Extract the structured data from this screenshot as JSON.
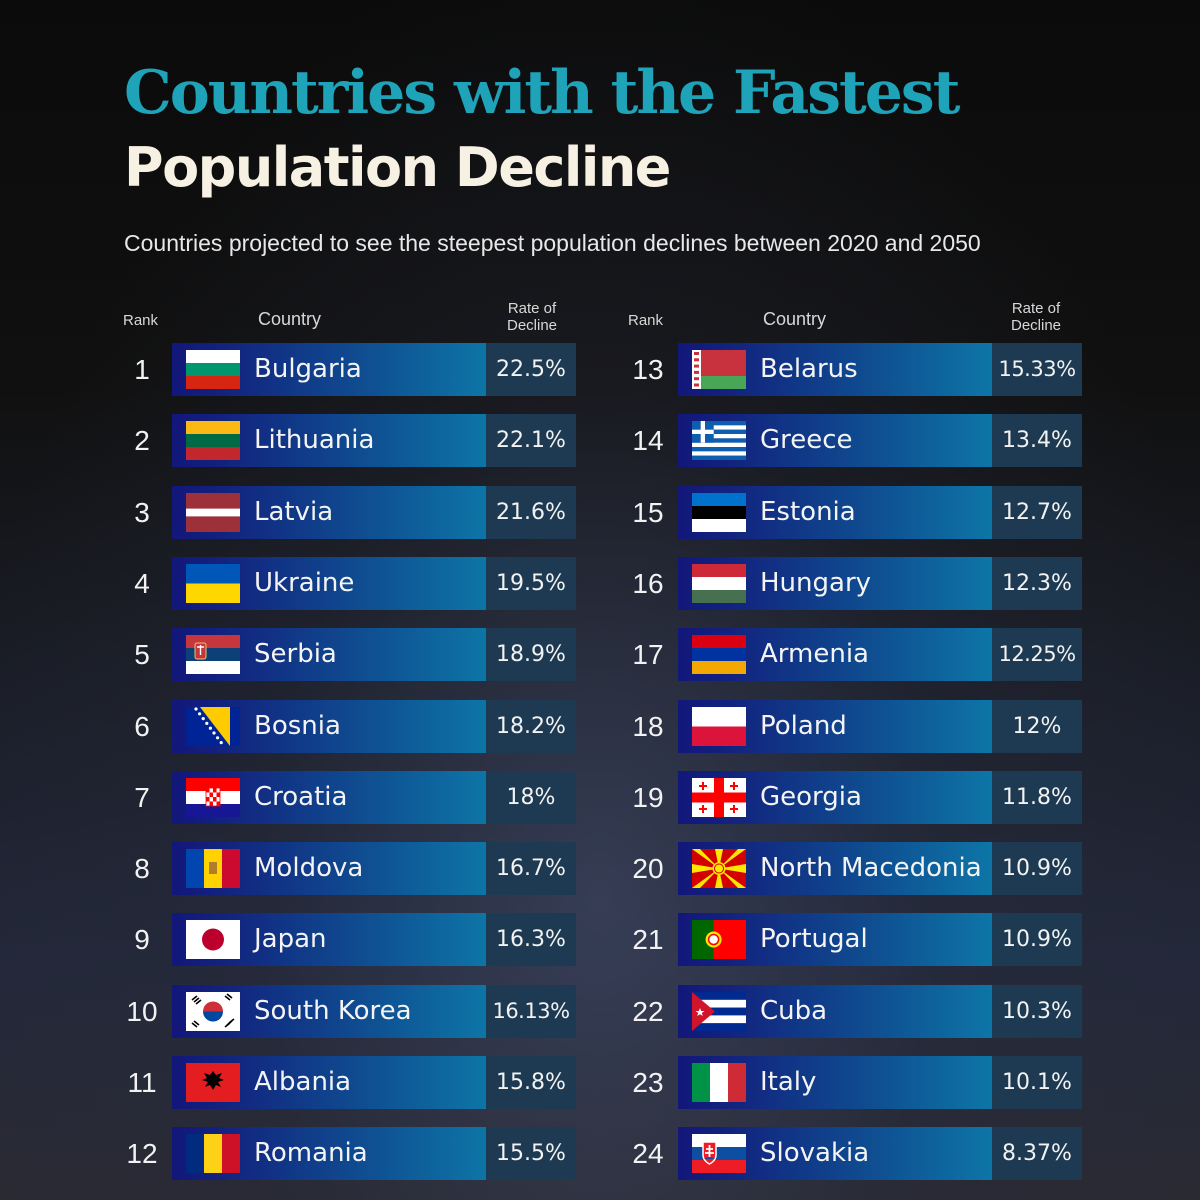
{
  "title_line1": "Countries with the Fastest",
  "title_line2": "Population Decline",
  "subtitle": "Countries projected to see the steepest population declines between 2020 and 2050",
  "headers": {
    "rank": "Rank",
    "country": "Country",
    "rate_line1": "Rate of",
    "rate_line2": "Decline"
  },
  "colors": {
    "title_accent": "#1fa3b8",
    "title_light": "#f6f1e3",
    "bar_start": "#12177a",
    "bar_end": "#0c86b2",
    "rate_cell": "#1d3a52"
  },
  "chart_data": {
    "type": "table",
    "columns": [
      "Rank",
      "Country",
      "Rate of Decline"
    ],
    "rows": [
      {
        "rank": "1",
        "country": "Bulgaria",
        "rate": "22.5%",
        "flag": "bulgaria"
      },
      {
        "rank": "2",
        "country": "Lithuania",
        "rate": "22.1%",
        "flag": "lithuania"
      },
      {
        "rank": "3",
        "country": "Latvia",
        "rate": "21.6%",
        "flag": "latvia"
      },
      {
        "rank": "4",
        "country": "Ukraine",
        "rate": "19.5%",
        "flag": "ukraine"
      },
      {
        "rank": "5",
        "country": "Serbia",
        "rate": "18.9%",
        "flag": "serbia"
      },
      {
        "rank": "6",
        "country": "Bosnia",
        "rate": "18.2%",
        "flag": "bosnia"
      },
      {
        "rank": "7",
        "country": "Croatia",
        "rate": "18%",
        "flag": "croatia"
      },
      {
        "rank": "8",
        "country": "Moldova",
        "rate": "16.7%",
        "flag": "moldova"
      },
      {
        "rank": "9",
        "country": "Japan",
        "rate": "16.3%",
        "flag": "japan"
      },
      {
        "rank": "10",
        "country": "South Korea",
        "rate": "16.13%",
        "flag": "south-korea"
      },
      {
        "rank": "11",
        "country": "Albania",
        "rate": "15.8%",
        "flag": "albania"
      },
      {
        "rank": "12",
        "country": "Romania",
        "rate": "15.5%",
        "flag": "romania"
      },
      {
        "rank": "13",
        "country": "Belarus",
        "rate": "15.33%",
        "flag": "belarus"
      },
      {
        "rank": "14",
        "country": "Greece",
        "rate": "13.4%",
        "flag": "greece"
      },
      {
        "rank": "15",
        "country": "Estonia",
        "rate": "12.7%",
        "flag": "estonia"
      },
      {
        "rank": "16",
        "country": "Hungary",
        "rate": "12.3%",
        "flag": "hungary"
      },
      {
        "rank": "17",
        "country": "Armenia",
        "rate": "12.25%",
        "flag": "armenia"
      },
      {
        "rank": "18",
        "country": "Poland",
        "rate": "12%",
        "flag": "poland"
      },
      {
        "rank": "19",
        "country": "Georgia",
        "rate": "11.8%",
        "flag": "georgia"
      },
      {
        "rank": "20",
        "country": "North Macedonia",
        "rate": "10.9%",
        "flag": "north-macedonia"
      },
      {
        "rank": "21",
        "country": "Portugal",
        "rate": "10.9%",
        "flag": "portugal"
      },
      {
        "rank": "22",
        "country": "Cuba",
        "rate": "10.3%",
        "flag": "cuba"
      },
      {
        "rank": "23",
        "country": "Italy",
        "rate": "10.1%",
        "flag": "italy"
      },
      {
        "rank": "24",
        "country": "Slovakia",
        "rate": "8.37%",
        "flag": "slovakia"
      }
    ]
  }
}
